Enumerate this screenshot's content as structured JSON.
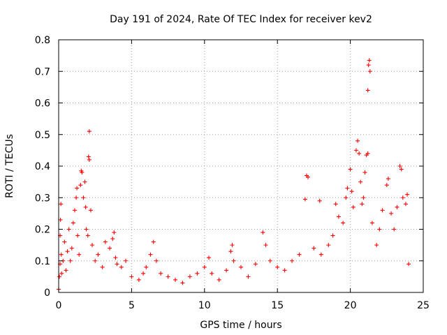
{
  "chart_data": {
    "type": "scatter",
    "title": "Day 191 of 2024, Rate Of TEC Index for receiver kev2",
    "xlabel": "GPS time / hours",
    "ylabel": "ROTI / TECUs",
    "xlim": [
      0,
      25
    ],
    "ylim": [
      0,
      0.8
    ],
    "xticks": [
      "0",
      "5",
      "10",
      "15",
      "20",
      "25"
    ],
    "yticks": [
      "0",
      "0.1",
      "0.2",
      "0.3",
      "0.4",
      "0.5",
      "0.6",
      "0.7",
      "0.8"
    ],
    "grid": true,
    "marker": "plus",
    "color": "#ff0000",
    "points": [
      [
        0.0,
        0.01
      ],
      [
        0.05,
        0.05
      ],
      [
        0.1,
        0.09
      ],
      [
        0.1,
        0.18
      ],
      [
        0.12,
        0.23
      ],
      [
        0.15,
        0.28
      ],
      [
        0.18,
        0.12
      ],
      [
        0.2,
        0.06
      ],
      [
        0.3,
        0.1
      ],
      [
        0.4,
        0.16
      ],
      [
        0.5,
        0.07
      ],
      [
        0.6,
        0.13
      ],
      [
        0.7,
        0.2
      ],
      [
        0.8,
        0.1
      ],
      [
        0.9,
        0.14
      ],
      [
        1.0,
        0.22
      ],
      [
        1.1,
        0.26
      ],
      [
        1.2,
        0.3
      ],
      [
        1.25,
        0.33
      ],
      [
        1.3,
        0.18
      ],
      [
        1.4,
        0.12
      ],
      [
        1.5,
        0.34
      ],
      [
        1.55,
        0.385
      ],
      [
        1.6,
        0.38
      ],
      [
        1.7,
        0.3
      ],
      [
        1.8,
        0.35
      ],
      [
        1.85,
        0.27
      ],
      [
        1.9,
        0.2
      ],
      [
        2.0,
        0.18
      ],
      [
        2.05,
        0.43
      ],
      [
        2.1,
        0.42
      ],
      [
        2.1,
        0.51
      ],
      [
        2.2,
        0.26
      ],
      [
        2.3,
        0.15
      ],
      [
        2.5,
        0.1
      ],
      [
        2.7,
        0.12
      ],
      [
        3.0,
        0.08
      ],
      [
        3.2,
        0.16
      ],
      [
        3.5,
        0.14
      ],
      [
        3.7,
        0.17
      ],
      [
        3.8,
        0.19
      ],
      [
        3.9,
        0.11
      ],
      [
        4.0,
        0.09
      ],
      [
        4.3,
        0.08
      ],
      [
        4.6,
        0.1
      ],
      [
        5.0,
        0.05
      ],
      [
        5.5,
        0.04
      ],
      [
        5.8,
        0.06
      ],
      [
        6.0,
        0.08
      ],
      [
        6.3,
        0.12
      ],
      [
        6.5,
        0.16
      ],
      [
        6.7,
        0.1
      ],
      [
        7.0,
        0.06
      ],
      [
        7.5,
        0.05
      ],
      [
        8.0,
        0.04
      ],
      [
        8.5,
        0.03
      ],
      [
        9.0,
        0.05
      ],
      [
        9.5,
        0.06
      ],
      [
        10.0,
        0.08
      ],
      [
        10.3,
        0.11
      ],
      [
        10.5,
        0.06
      ],
      [
        11.0,
        0.04
      ],
      [
        11.5,
        0.07
      ],
      [
        11.8,
        0.13
      ],
      [
        11.9,
        0.15
      ],
      [
        12.0,
        0.1
      ],
      [
        12.5,
        0.08
      ],
      [
        13.0,
        0.05
      ],
      [
        13.5,
        0.09
      ],
      [
        14.0,
        0.19
      ],
      [
        14.2,
        0.15
      ],
      [
        14.5,
        0.1
      ],
      [
        15.0,
        0.08
      ],
      [
        15.5,
        0.07
      ],
      [
        16.0,
        0.1
      ],
      [
        16.5,
        0.12
      ],
      [
        16.9,
        0.295
      ],
      [
        17.0,
        0.37
      ],
      [
        17.1,
        0.365
      ],
      [
        17.5,
        0.14
      ],
      [
        17.9,
        0.29
      ],
      [
        18.0,
        0.12
      ],
      [
        18.5,
        0.15
      ],
      [
        18.8,
        0.18
      ],
      [
        19.0,
        0.28
      ],
      [
        19.2,
        0.24
      ],
      [
        19.5,
        0.22
      ],
      [
        19.7,
        0.3
      ],
      [
        19.8,
        0.33
      ],
      [
        20.0,
        0.39
      ],
      [
        20.1,
        0.32
      ],
      [
        20.2,
        0.27
      ],
      [
        20.4,
        0.45
      ],
      [
        20.5,
        0.48
      ],
      [
        20.6,
        0.44
      ],
      [
        20.7,
        0.35
      ],
      [
        20.8,
        0.28
      ],
      [
        20.9,
        0.3
      ],
      [
        21.0,
        0.38
      ],
      [
        21.1,
        0.435
      ],
      [
        21.2,
        0.44
      ],
      [
        21.2,
        0.64
      ],
      [
        21.25,
        0.72
      ],
      [
        21.3,
        0.735
      ],
      [
        21.35,
        0.7
      ],
      [
        21.5,
        0.22
      ],
      [
        21.8,
        0.15
      ],
      [
        22.0,
        0.2
      ],
      [
        22.2,
        0.26
      ],
      [
        22.5,
        0.34
      ],
      [
        22.6,
        0.36
      ],
      [
        22.8,
        0.25
      ],
      [
        23.0,
        0.2
      ],
      [
        23.2,
        0.27
      ],
      [
        23.4,
        0.4
      ],
      [
        23.5,
        0.39
      ],
      [
        23.6,
        0.3
      ],
      [
        23.8,
        0.28
      ],
      [
        23.9,
        0.31
      ],
      [
        24.0,
        0.09
      ]
    ]
  }
}
